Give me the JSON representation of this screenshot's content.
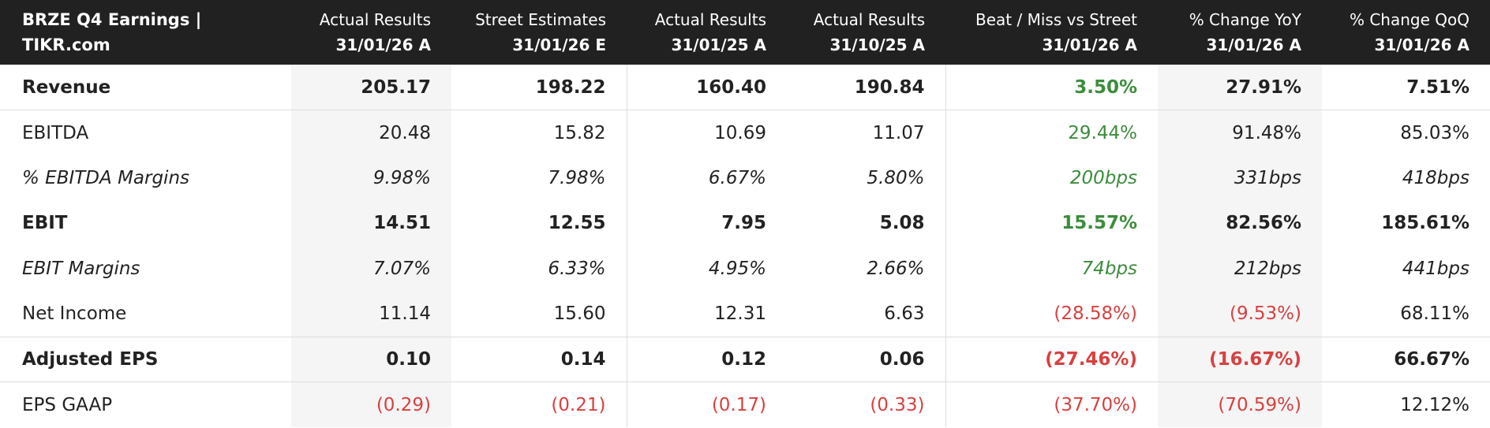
{
  "table": {
    "title": "BRZE Q4 Earnings | TIKR.com",
    "columns": [
      {
        "label": "Actual Results",
        "date": "31/01/26 A"
      },
      {
        "label": "Street Estimates",
        "date": "31/01/26 E"
      },
      {
        "label": "Actual Results",
        "date": "31/01/25 A"
      },
      {
        "label": "Actual Results",
        "date": "31/10/25 A"
      },
      {
        "label": "Beat / Miss vs Street",
        "date": "31/01/26 A"
      },
      {
        "label": "% Change YoY",
        "date": "31/01/26 A"
      },
      {
        "label": "% Change QoQ",
        "date": "31/01/26 A"
      }
    ],
    "rows": [
      {
        "label": "Revenue",
        "values": [
          "205.17",
          "198.22",
          "160.40",
          "190.84",
          "3.50%",
          "27.91%",
          "7.51%"
        ]
      },
      {
        "label": "EBITDA",
        "values": [
          "20.48",
          "15.82",
          "10.69",
          "11.07",
          "29.44%",
          "91.48%",
          "85.03%"
        ]
      },
      {
        "label": "% EBITDA Margins",
        "values": [
          "9.98%",
          "7.98%",
          "6.67%",
          "5.80%",
          "200bps",
          "331bps",
          "418bps"
        ]
      },
      {
        "label": "EBIT",
        "values": [
          "14.51",
          "12.55",
          "7.95",
          "5.08",
          "15.57%",
          "82.56%",
          "185.61%"
        ]
      },
      {
        "label": "EBIT Margins",
        "values": [
          "7.07%",
          "6.33%",
          "4.95%",
          "2.66%",
          "74bps",
          "212bps",
          "441bps"
        ]
      },
      {
        "label": "Net Income",
        "values": [
          "11.14",
          "15.60",
          "12.31",
          "6.63",
          "(28.58%)",
          "(9.53%)",
          "68.11%"
        ]
      },
      {
        "label": "Adjusted EPS",
        "values": [
          "0.10",
          "0.14",
          "0.12",
          "0.06",
          "(27.46%)",
          "(16.67%)",
          "66.67%"
        ]
      },
      {
        "label": "EPS GAAP",
        "values": [
          "(0.29)",
          "(0.21)",
          "(0.17)",
          "(0.33)",
          "(37.70%)",
          "(70.59%)",
          "12.12%"
        ]
      }
    ]
  },
  "colors": {
    "header_bg": "#212121",
    "positive": "#3c8c3c",
    "negative": "#d94040",
    "shaded_col": "#f5f5f5"
  }
}
